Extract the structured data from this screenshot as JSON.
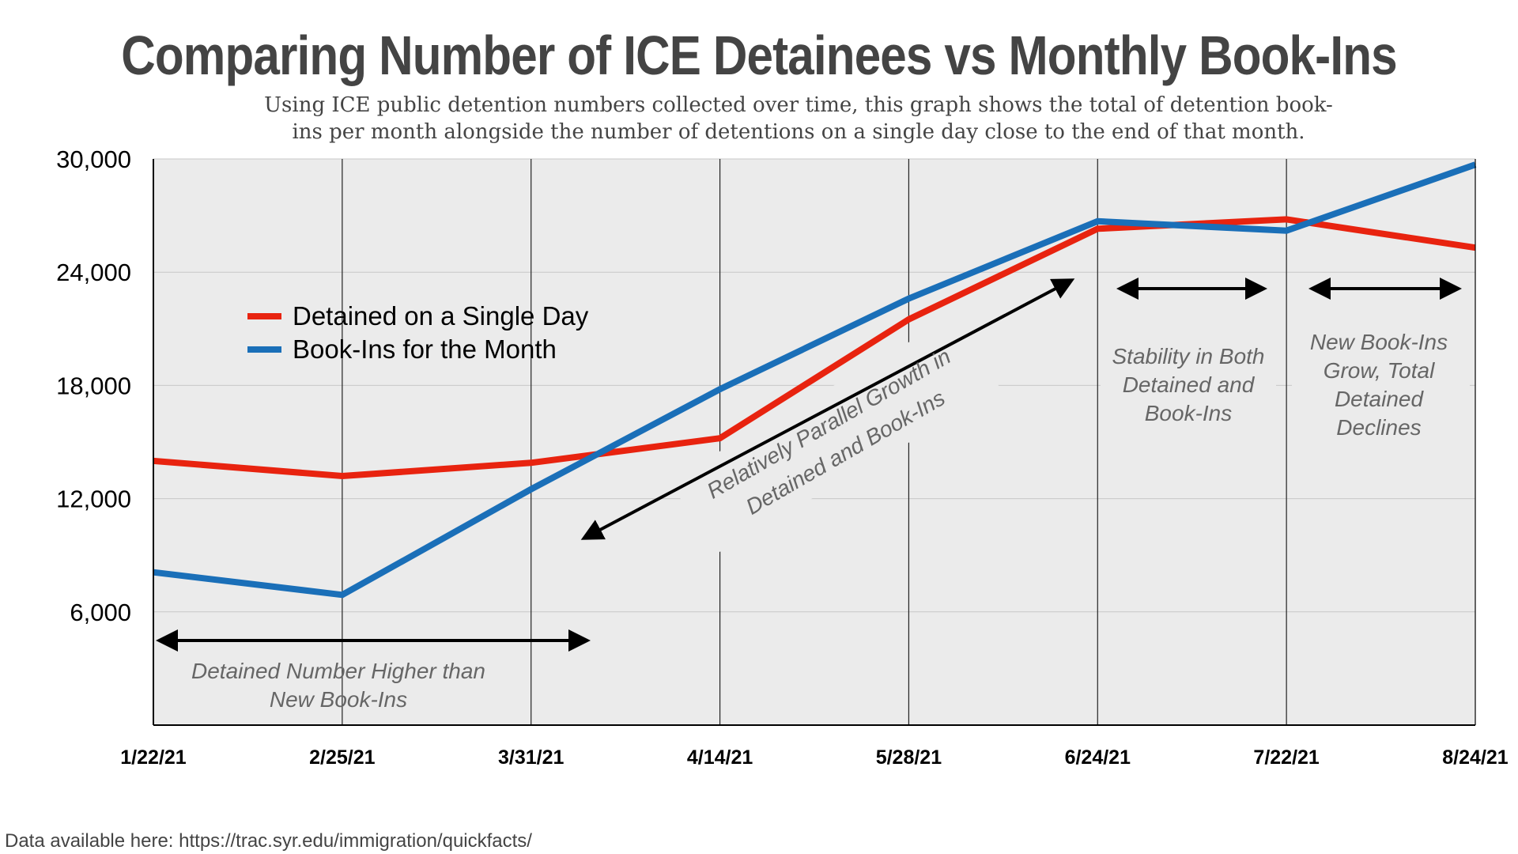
{
  "title": "Comparing Number of ICE Detainees vs Monthly Book-Ins",
  "subtitle_line1": "Using ICE public detention numbers collected over time, this graph shows the total of detention book-",
  "subtitle_line2": "ins per month alongside the number of detentions on a single day close to the end of that month.",
  "source_note": "Data available here: https://trac.syr.edu/immigration/quickfacts/",
  "colors": {
    "detained": "#e8230f",
    "bookins": "#1a6fb8",
    "plot_background": "#ebebeb",
    "gridline": "#c8c8c8",
    "annotation_text": "#666666"
  },
  "chart_data": {
    "type": "line",
    "title": "Comparing Number of ICE Detainees vs Monthly Book-Ins",
    "xlabel": "",
    "ylabel": "",
    "x": [
      "1/22/21",
      "2/25/21",
      "3/31/21",
      "4/14/21",
      "5/28/21",
      "6/24/21",
      "7/22/21",
      "8/24/21"
    ],
    "ylim": [
      0,
      30000
    ],
    "yticks": [
      6000,
      12000,
      18000,
      24000,
      30000
    ],
    "ytick_labels": [
      "6,000",
      "12,000",
      "18,000",
      "24,000",
      "30,000"
    ],
    "grid": true,
    "legend_position": "upper-left",
    "series": [
      {
        "name": "Detained on a Single Day",
        "color": "#e8230f",
        "values": [
          14000,
          13200,
          13900,
          15200,
          21500,
          26300,
          26800,
          25300
        ]
      },
      {
        "name": "Book-Ins for the Month",
        "color": "#1a6fb8",
        "values": [
          8100,
          6900,
          12500,
          17800,
          22600,
          26700,
          26200,
          29700
        ]
      }
    ],
    "annotations": [
      {
        "id": "detained-higher",
        "lines": [
          "Detained Number Higher than",
          "New Book-Ins"
        ],
        "arrow": "double"
      },
      {
        "id": "parallel-growth",
        "lines": [
          "Relatively Parallel Growth in",
          "Detained and Book-Ins"
        ],
        "arrow": "double-diagonal"
      },
      {
        "id": "stability",
        "lines": [
          "Stability in Both",
          "Detained and",
          "Book-Ins"
        ],
        "arrow": "double"
      },
      {
        "id": "new-bookins-grow",
        "lines": [
          "New Book-Ins",
          "Grow, Total",
          "Detained",
          "Declines"
        ],
        "arrow": "double"
      }
    ]
  }
}
